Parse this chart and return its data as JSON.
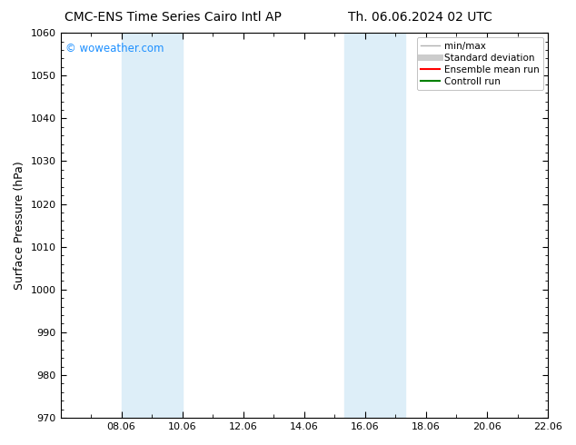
{
  "title_left": "CMC-ENS Time Series Cairo Intl AP",
  "title_right": "Th. 06.06.2024 02 UTC",
  "ylabel": "Surface Pressure (hPa)",
  "ylim": [
    970,
    1060
  ],
  "yticks": [
    970,
    980,
    990,
    1000,
    1010,
    1020,
    1030,
    1040,
    1050,
    1060
  ],
  "xlim": [
    0,
    16
  ],
  "xticks_labels": [
    "08.06",
    "10.06",
    "12.06",
    "14.06",
    "16.06",
    "18.06",
    "20.06",
    "22.06"
  ],
  "xtick_positions": [
    2,
    4,
    6,
    8,
    10,
    12,
    14,
    16
  ],
  "shaded_bands": [
    {
      "x_start": 2,
      "x_end": 4,
      "color": "#ddeef8"
    },
    {
      "x_start": 9.33,
      "x_end": 11.33,
      "color": "#ddeef8"
    }
  ],
  "watermark": "© woweather.com",
  "watermark_color": "#1e90ff",
  "background_color": "#ffffff",
  "plot_bg_color": "#ffffff",
  "legend_items": [
    {
      "label": "min/max",
      "color": "#b0b0b0",
      "lw": 1.0,
      "style": "solid"
    },
    {
      "label": "Standard deviation",
      "color": "#cccccc",
      "lw": 5,
      "style": "solid"
    },
    {
      "label": "Ensemble mean run",
      "color": "#ff0000",
      "lw": 1.5,
      "style": "solid"
    },
    {
      "label": "Controll run",
      "color": "#008000",
      "lw": 1.5,
      "style": "solid"
    }
  ],
  "title_fontsize": 10,
  "tick_fontsize": 8,
  "ylabel_fontsize": 9,
  "legend_fontsize": 7.5,
  "watermark_fontsize": 8.5
}
